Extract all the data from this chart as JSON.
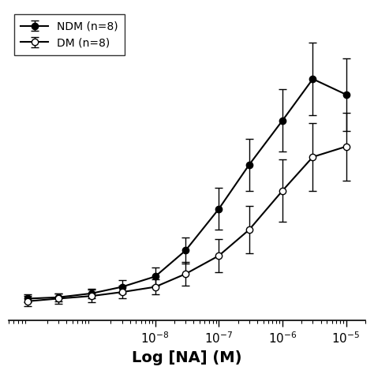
{
  "title": "",
  "xlabel": "Log [NA] (M)",
  "ylabel": "",
  "ndm_label": "NDM (n=8)",
  "dm_label": "DM (n=8)",
  "x_vals": [
    1e-10,
    3e-10,
    1e-09,
    3e-09,
    1e-08,
    3e-08,
    1e-07,
    3e-07,
    1e-06,
    3e-06,
    1e-05
  ],
  "ndm_y": [
    3.5,
    4.0,
    5.5,
    8.0,
    12.0,
    22.0,
    38.0,
    55.0,
    72.0,
    88.0,
    82.0
  ],
  "ndm_err": [
    1.5,
    1.5,
    1.8,
    2.5,
    3.5,
    5.0,
    8.0,
    10.0,
    12.0,
    14.0,
    14.0
  ],
  "dm_y": [
    2.5,
    3.5,
    4.5,
    6.0,
    8.0,
    13.0,
    20.0,
    30.0,
    45.0,
    58.0,
    62.0
  ],
  "dm_err": [
    2.0,
    2.0,
    2.5,
    2.5,
    3.0,
    4.5,
    6.5,
    9.0,
    12.0,
    13.0,
    13.0
  ],
  "xlim": [
    5e-11,
    2e-05
  ],
  "ylim": [
    -5,
    115
  ],
  "bg_color": "#ffffff"
}
